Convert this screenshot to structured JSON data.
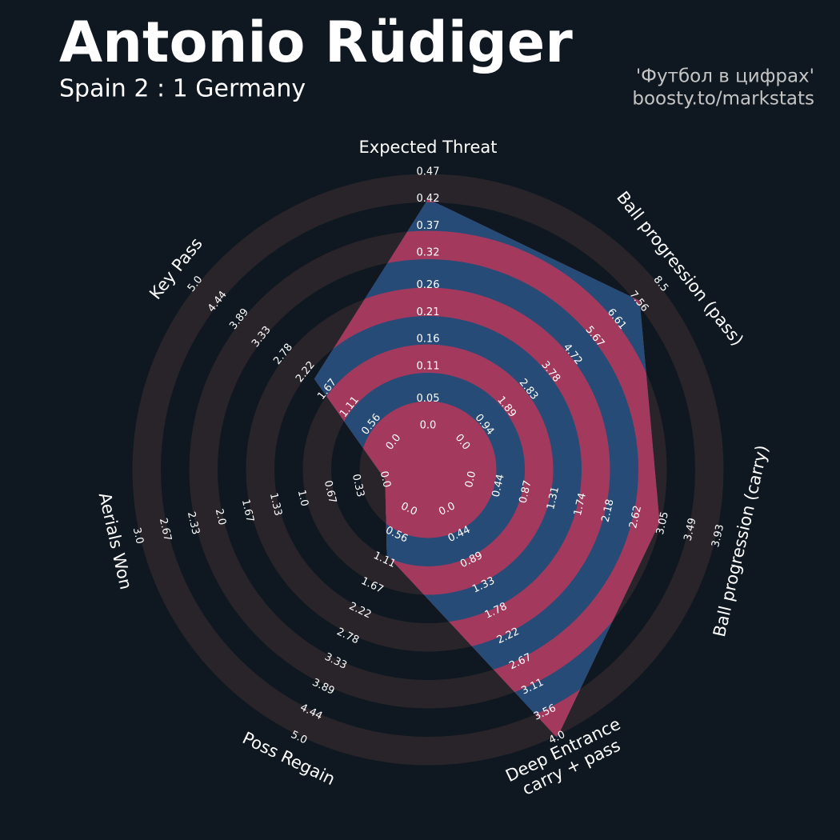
{
  "chart_data": {
    "type": "radar",
    "title": "Antonio Rüdiger",
    "subtitle": "Spain 2 : 1 Germany",
    "credits": [
      "'Футбол в цифрах'",
      "boosty.to/markstats"
    ],
    "axes": [
      {
        "name_lines": [
          "Expected Threat"
        ],
        "lim": [
          0,
          0.47
        ],
        "ticks": [
          {
            "value": 0,
            "label": "0.0"
          },
          0.05,
          0.11,
          0.16,
          0.21,
          0.26,
          0.32,
          0.37,
          0.42,
          0.47
        ]
      },
      {
        "name_lines": [
          "Ball progression (pass)"
        ],
        "lim": [
          0,
          8.5
        ],
        "ticks": [
          {
            "value": 0,
            "label": "0.0"
          },
          0.94,
          1.89,
          2.83,
          3.78,
          4.72,
          5.67,
          6.61,
          7.56,
          8.5
        ]
      },
      {
        "name_lines": [
          "Ball progression (carry)"
        ],
        "lim": [
          0,
          3.93
        ],
        "ticks": [
          {
            "value": 0,
            "label": "0.0"
          },
          0.44,
          0.87,
          1.31,
          1.74,
          2.18,
          2.62,
          3.05,
          3.49,
          3.93
        ]
      },
      {
        "name_lines": [
          "Deep Entrance",
          "carry + pass"
        ],
        "lim": [
          0,
          4
        ],
        "ticks": [
          {
            "value": 0,
            "label": "0.0"
          },
          0.44,
          0.89,
          1.33,
          1.78,
          2.22,
          2.67,
          3.11,
          3.56,
          {
            "value": 4,
            "label": "4.0"
          }
        ]
      },
      {
        "name_lines": [
          "Poss Regain"
        ],
        "lim": [
          0,
          5
        ],
        "ticks": [
          {
            "value": 0,
            "label": "0.0"
          },
          0.56,
          1.11,
          1.67,
          2.22,
          2.78,
          3.33,
          3.89,
          4.44,
          {
            "value": 5,
            "label": "5.0"
          }
        ]
      },
      {
        "name_lines": [
          "Aerials Won"
        ],
        "lim": [
          0,
          3
        ],
        "ticks": [
          {
            "value": 0,
            "label": "0.0"
          },
          0.33,
          0.67,
          {
            "value": 1,
            "label": "1.0"
          },
          1.33,
          1.67,
          {
            "value": 2,
            "label": "2.0"
          },
          2.33,
          2.67,
          {
            "value": 3,
            "label": "3.0"
          }
        ]
      },
      {
        "name_lines": [
          "Key Pass"
        ],
        "lim": [
          0,
          5
        ],
        "ticks": [
          {
            "value": 0,
            "label": "0.0"
          },
          0.56,
          1.11,
          1.67,
          2.22,
          2.78,
          3.33,
          3.89,
          4.44,
          {
            "value": 5,
            "label": "5.0"
          }
        ]
      }
    ],
    "series": [
      {
        "values": [
          0.42,
          7.6,
          3.0,
          4.0,
          1,
          0,
          2
        ],
        "color": "#264b76",
        "ring_color": "#a33a5e"
      }
    ],
    "ring_colors": [
      "#28242a",
      "#0f1820"
    ]
  }
}
